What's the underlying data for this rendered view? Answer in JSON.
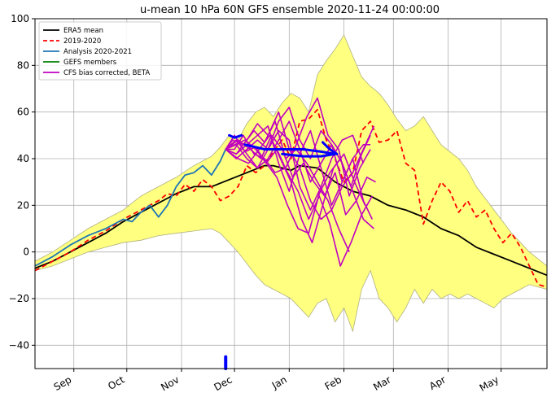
{
  "chart_data": {
    "type": "line",
    "title": "u-mean 10 hPa 60N GFS ensemble 2020-11-24 00:00:00",
    "xlabel": "",
    "ylabel": "",
    "ylim": [
      -50,
      100
    ],
    "xlim_day": [
      0,
      290
    ],
    "yticks": [
      -40,
      -20,
      0,
      20,
      40,
      60,
      80,
      100
    ],
    "month_ticks": [
      {
        "label": "Sep",
        "day": 22
      },
      {
        "label": "Oct",
        "day": 52
      },
      {
        "label": "Nov",
        "day": 83
      },
      {
        "label": "Dec",
        "day": 113
      },
      {
        "label": "Jan",
        "day": 144
      },
      {
        "label": "Feb",
        "day": 175
      },
      {
        "label": "Mar",
        "day": 203
      },
      {
        "label": "Apr",
        "day": 234
      },
      {
        "label": "May",
        "day": 264
      }
    ],
    "grid": true,
    "legend_position": "top-left",
    "legend": [
      {
        "label": "ERA5 mean",
        "color": "#000000",
        "style": "solid"
      },
      {
        "label": "2019-2020",
        "color": "#ff0000",
        "style": "dashed"
      },
      {
        "label": "Analysis 2020-2021",
        "color": "#1f77b4",
        "style": "solid"
      },
      {
        "label": "GEFS members",
        "color": "#008000",
        "style": "solid"
      },
      {
        "label": "CFS bias corrected, BETA",
        "color": "#c000c0",
        "style": "solid"
      }
    ],
    "colors": {
      "envelope_fill": "#ffff80",
      "envelope_edge": "#b0b080",
      "era5": "#000000",
      "season_2019": "#ff0000",
      "analysis": "#1f77b4",
      "cfs": "#c000c0",
      "gefs_marker": "#0000ff",
      "grid": "#b0b0b0"
    },
    "envelope": {
      "x": [
        0,
        10,
        20,
        30,
        40,
        50,
        60,
        70,
        80,
        90,
        100,
        105,
        110,
        115,
        120,
        125,
        130,
        135,
        140,
        145,
        150,
        155,
        160,
        165,
        170,
        175,
        180,
        185,
        190,
        195,
        200,
        205,
        210,
        215,
        220,
        225,
        230,
        235,
        240,
        245,
        250,
        255,
        260,
        265,
        270,
        275,
        280,
        285,
        290
      ],
      "upper": [
        -4,
        0,
        5,
        10,
        14,
        18,
        24,
        28,
        32,
        37,
        41,
        45,
        50,
        48,
        55,
        60,
        62,
        58,
        64,
        68,
        66,
        60,
        76,
        82,
        87,
        93,
        84,
        75,
        71,
        68,
        63,
        57,
        52,
        54,
        58,
        52,
        46,
        43,
        40,
        35,
        28,
        23,
        18,
        13,
        8,
        4,
        0,
        -3,
        -6
      ],
      "lower": [
        -8,
        -6,
        -3,
        0,
        2,
        4,
        5,
        7,
        8,
        9,
        10,
        8,
        4,
        0,
        -5,
        -10,
        -14,
        -16,
        -18,
        -20,
        -24,
        -28,
        -22,
        -20,
        -30,
        -24,
        -34,
        -16,
        -8,
        -20,
        -24,
        -30,
        -24,
        -16,
        -22,
        -16,
        -20,
        -18,
        -20,
        -18,
        -20,
        -22,
        -24,
        -20,
        -18,
        -16,
        -14,
        -15,
        -16
      ]
    },
    "series": [
      {
        "name": "ERA5 mean",
        "color": "#000000",
        "dash": "",
        "x": [
          0,
          10,
          20,
          30,
          40,
          50,
          60,
          70,
          80,
          90,
          100,
          110,
          120,
          130,
          135,
          140,
          145,
          150,
          160,
          165,
          170,
          180,
          190,
          200,
          210,
          220,
          230,
          240,
          250,
          260,
          270,
          280,
          290
        ],
        "y": [
          -7,
          -4,
          0,
          4,
          8,
          13,
          17,
          21,
          25,
          28,
          28,
          31,
          34,
          37,
          37,
          36,
          35,
          37,
          36,
          33,
          30,
          26,
          24,
          20,
          18,
          15,
          10,
          7,
          2,
          -1,
          -4,
          -7,
          -10
        ]
      },
      {
        "name": "2019-2020",
        "color": "#ff0000",
        "dash": "6,4",
        "x": [
          0,
          10,
          20,
          30,
          40,
          50,
          60,
          70,
          75,
          80,
          85,
          90,
          95,
          100,
          105,
          110,
          115,
          120,
          125,
          130,
          135,
          140,
          145,
          150,
          155,
          160,
          165,
          170,
          175,
          180,
          185,
          190,
          195,
          200,
          205,
          210,
          215,
          220,
          225,
          230,
          235,
          240,
          245,
          250,
          255,
          260,
          265,
          270,
          275,
          280,
          285,
          290
        ],
        "y": [
          -8,
          -4,
          0,
          5,
          9,
          14,
          18,
          22,
          25,
          24,
          29,
          26,
          31,
          28,
          22,
          24,
          28,
          37,
          34,
          37,
          43,
          48,
          40,
          56,
          57,
          61,
          48,
          40,
          30,
          34,
          52,
          56,
          47,
          48,
          52,
          38,
          35,
          12,
          22,
          30,
          26,
          17,
          22,
          15,
          18,
          10,
          4,
          8,
          2,
          -6,
          -14,
          -15
        ]
      },
      {
        "name": "Analysis 2020-2021",
        "color": "#1f77b4",
        "dash": "",
        "x": [
          0,
          10,
          20,
          30,
          40,
          45,
          50,
          55,
          60,
          65,
          70,
          75,
          80,
          85,
          90,
          95,
          100,
          105,
          108
        ],
        "y": [
          -6,
          -2,
          3,
          7,
          10,
          12,
          14,
          13,
          17,
          20,
          15,
          20,
          28,
          33,
          34,
          37,
          33,
          39,
          44
        ]
      },
      {
        "name": "CFS member 1",
        "color": "#c000c0",
        "dash": "",
        "x": [
          108,
          112,
          118,
          124,
          130,
          136,
          142,
          148,
          154,
          160,
          166,
          172,
          178
        ],
        "y": [
          44,
          48,
          46,
          52,
          47,
          56,
          40,
          44,
          38,
          30,
          22,
          10,
          0
        ]
      },
      {
        "name": "CFS member 2",
        "color": "#c000c0",
        "dash": "",
        "x": [
          108,
          113,
          119,
          125,
          131,
          137,
          143,
          149,
          155,
          161,
          167,
          173,
          179,
          185,
          190
        ],
        "y": [
          44,
          50,
          43,
          45,
          38,
          32,
          20,
          10,
          8,
          25,
          34,
          40,
          28,
          42,
          50
        ]
      },
      {
        "name": "CFS member 3",
        "color": "#c000c0",
        "dash": "",
        "x": [
          108,
          114,
          120,
          126,
          132,
          138,
          144,
          150,
          156,
          162,
          168,
          174,
          180,
          186,
          192
        ],
        "y": [
          44,
          42,
          48,
          55,
          50,
          60,
          44,
          36,
          22,
          14,
          18,
          28,
          34,
          44,
          54
        ]
      },
      {
        "name": "CFS member 4",
        "color": "#c000c0",
        "dash": "",
        "x": [
          108,
          115,
          121,
          127,
          133,
          139,
          145,
          151,
          157,
          163,
          169,
          175,
          181,
          187
        ],
        "y": [
          44,
          40,
          38,
          44,
          50,
          40,
          30,
          14,
          4,
          20,
          36,
          42,
          30,
          20
        ]
      },
      {
        "name": "CFS member 5",
        "color": "#c000c0",
        "dash": "",
        "x": [
          108,
          114,
          120,
          126,
          132,
          138,
          144,
          150,
          156,
          162,
          168,
          174,
          180,
          186,
          192
        ],
        "y": [
          44,
          46,
          40,
          36,
          44,
          56,
          62,
          48,
          40,
          52,
          46,
          38,
          26,
          14,
          10
        ]
      },
      {
        "name": "CFS member 6",
        "color": "#c000c0",
        "dash": "",
        "x": [
          108,
          113,
          118,
          124,
          130,
          136,
          142,
          148,
          154,
          160,
          166,
          172,
          178,
          184,
          190
        ],
        "y": [
          44,
          44,
          50,
          42,
          40,
          34,
          36,
          46,
          58,
          66,
          50,
          44,
          24,
          36,
          44
        ]
      },
      {
        "name": "CFS member 7",
        "color": "#c000c0",
        "dash": "",
        "x": [
          108,
          115,
          122,
          128,
          134,
          140,
          146,
          152,
          158,
          164,
          170,
          176,
          182,
          188,
          193
        ],
        "y": [
          44,
          48,
          44,
          40,
          50,
          44,
          32,
          38,
          30,
          24,
          34,
          16,
          22,
          32,
          30
        ]
      },
      {
        "name": "CFS member 8",
        "color": "#c000c0",
        "dash": "",
        "x": [
          108,
          114,
          120,
          126,
          132,
          138,
          144,
          150,
          156,
          162,
          168,
          174,
          180,
          186,
          191
        ],
        "y": [
          44,
          42,
          46,
          50,
          54,
          38,
          26,
          42,
          52,
          36,
          20,
          30,
          40,
          22,
          14
        ]
      },
      {
        "name": "CFS member 9",
        "color": "#c000c0",
        "dash": "",
        "x": [
          108,
          114,
          120,
          126,
          132,
          138,
          144,
          150,
          156,
          162,
          168,
          174,
          180,
          186
        ],
        "y": [
          44,
          40,
          44,
          48,
          44,
          52,
          48,
          28,
          18,
          28,
          40,
          48,
          50,
          38
        ]
      },
      {
        "name": "CFS member 10",
        "color": "#c000c0",
        "dash": "",
        "x": [
          108,
          113,
          119,
          125,
          131,
          137,
          143,
          149,
          155,
          161,
          167,
          173,
          179,
          185,
          191
        ],
        "y": [
          44,
          46,
          48,
          44,
          38,
          44,
          34,
          26,
          14,
          24,
          12,
          -6,
          4,
          16,
          24
        ]
      },
      {
        "name": "CFS member 11",
        "color": "#c000c0",
        "dash": "",
        "x": [
          108,
          114,
          120,
          126,
          132,
          138,
          144,
          150,
          156,
          162,
          168,
          174,
          180,
          186,
          190
        ],
        "y": [
          44,
          48,
          42,
          36,
          40,
          48,
          56,
          44,
          30,
          38,
          46,
          30,
          40,
          46,
          46
        ]
      }
    ],
    "gefs_markers": {
      "color": "#0000ff",
      "segments": [
        {
          "x": [
            110,
            113,
            117
          ],
          "y": [
            50,
            49,
            50
          ]
        },
        {
          "x": [
            119,
            130,
            142,
            152,
            162,
            170
          ],
          "y": [
            46,
            44,
            44,
            44,
            43,
            42
          ]
        },
        {
          "x": [
            140,
            152,
            162,
            170
          ],
          "y": [
            42,
            41,
            41,
            42
          ]
        },
        {
          "x": [
            163,
            167,
            171
          ],
          "y": [
            47,
            44,
            42
          ]
        }
      ],
      "date_marker": {
        "day": 108,
        "ylow": -50,
        "yhigh": -45
      }
    }
  }
}
